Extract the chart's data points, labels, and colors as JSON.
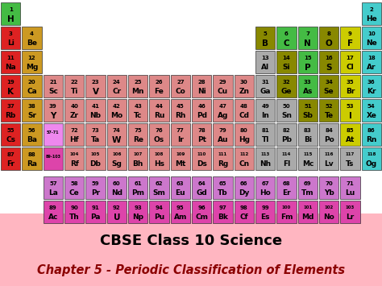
{
  "title1": "CBSE Class 10 Science",
  "title2": "Chapter 5 - Periodic Classification of Elements",
  "bg_color": "#ffb6c1",
  "table_bg": "#ffffff",
  "title1_color": "black",
  "title2_color": "#8b0000",
  "elements": [
    {
      "num": "1",
      "sym": "H",
      "row": 0,
      "col": 0,
      "color": "#44bb44"
    },
    {
      "num": "2",
      "sym": "He",
      "row": 0,
      "col": 17,
      "color": "#44cccc"
    },
    {
      "num": "3",
      "sym": "Li",
      "row": 1,
      "col": 0,
      "color": "#dd2222"
    },
    {
      "num": "4",
      "sym": "Be",
      "row": 1,
      "col": 1,
      "color": "#cc9922"
    },
    {
      "num": "5",
      "sym": "B",
      "row": 1,
      "col": 12,
      "color": "#888800"
    },
    {
      "num": "6",
      "sym": "C",
      "row": 1,
      "col": 13,
      "color": "#44bb44"
    },
    {
      "num": "7",
      "sym": "N",
      "row": 1,
      "col": 14,
      "color": "#44bb44"
    },
    {
      "num": "8",
      "sym": "O",
      "row": 1,
      "col": 15,
      "color": "#888800"
    },
    {
      "num": "9",
      "sym": "F",
      "row": 1,
      "col": 16,
      "color": "#cccc00"
    },
    {
      "num": "10",
      "sym": "Ne",
      "row": 1,
      "col": 17,
      "color": "#44cccc"
    },
    {
      "num": "11",
      "sym": "Na",
      "row": 2,
      "col": 0,
      "color": "#dd2222"
    },
    {
      "num": "12",
      "sym": "Mg",
      "row": 2,
      "col": 1,
      "color": "#cc9922"
    },
    {
      "num": "13",
      "sym": "Al",
      "row": 2,
      "col": 12,
      "color": "#aaaaaa"
    },
    {
      "num": "14",
      "sym": "Si",
      "row": 2,
      "col": 13,
      "color": "#888800"
    },
    {
      "num": "15",
      "sym": "P",
      "row": 2,
      "col": 14,
      "color": "#44bb44"
    },
    {
      "num": "16",
      "sym": "S",
      "row": 2,
      "col": 15,
      "color": "#888800"
    },
    {
      "num": "17",
      "sym": "Cl",
      "row": 2,
      "col": 16,
      "color": "#cccc00"
    },
    {
      "num": "18",
      "sym": "Ar",
      "row": 2,
      "col": 17,
      "color": "#44cccc"
    },
    {
      "num": "19",
      "sym": "K",
      "row": 3,
      "col": 0,
      "color": "#dd2222"
    },
    {
      "num": "20",
      "sym": "Ca",
      "row": 3,
      "col": 1,
      "color": "#cc9922"
    },
    {
      "num": "21",
      "sym": "Sc",
      "row": 3,
      "col": 2,
      "color": "#dd8888"
    },
    {
      "num": "22",
      "sym": "Ti",
      "row": 3,
      "col": 3,
      "color": "#dd8888"
    },
    {
      "num": "23",
      "sym": "V",
      "row": 3,
      "col": 4,
      "color": "#dd8888"
    },
    {
      "num": "24",
      "sym": "Cr",
      "row": 3,
      "col": 5,
      "color": "#dd8888"
    },
    {
      "num": "25",
      "sym": "Mn",
      "row": 3,
      "col": 6,
      "color": "#dd8888"
    },
    {
      "num": "26",
      "sym": "Fe",
      "row": 3,
      "col": 7,
      "color": "#dd8888"
    },
    {
      "num": "27",
      "sym": "Co",
      "row": 3,
      "col": 8,
      "color": "#dd8888"
    },
    {
      "num": "28",
      "sym": "Ni",
      "row": 3,
      "col": 9,
      "color": "#dd8888"
    },
    {
      "num": "29",
      "sym": "Cu",
      "row": 3,
      "col": 10,
      "color": "#dd8888"
    },
    {
      "num": "30",
      "sym": "Zn",
      "row": 3,
      "col": 11,
      "color": "#dd8888"
    },
    {
      "num": "31",
      "sym": "Ga",
      "row": 3,
      "col": 12,
      "color": "#aaaaaa"
    },
    {
      "num": "32",
      "sym": "Ge",
      "row": 3,
      "col": 13,
      "color": "#888800"
    },
    {
      "num": "33",
      "sym": "As",
      "row": 3,
      "col": 14,
      "color": "#44bb44"
    },
    {
      "num": "34",
      "sym": "Se",
      "row": 3,
      "col": 15,
      "color": "#888800"
    },
    {
      "num": "35",
      "sym": "Br",
      "row": 3,
      "col": 16,
      "color": "#cccc00"
    },
    {
      "num": "36",
      "sym": "Kr",
      "row": 3,
      "col": 17,
      "color": "#44cccc"
    },
    {
      "num": "37",
      "sym": "Rb",
      "row": 4,
      "col": 0,
      "color": "#dd2222"
    },
    {
      "num": "38",
      "sym": "Sr",
      "row": 4,
      "col": 1,
      "color": "#cc9922"
    },
    {
      "num": "39",
      "sym": "Y",
      "row": 4,
      "col": 2,
      "color": "#dd8888"
    },
    {
      "num": "40",
      "sym": "Zr",
      "row": 4,
      "col": 3,
      "color": "#dd8888"
    },
    {
      "num": "41",
      "sym": "Nb",
      "row": 4,
      "col": 4,
      "color": "#dd8888"
    },
    {
      "num": "42",
      "sym": "Mo",
      "row": 4,
      "col": 5,
      "color": "#dd8888"
    },
    {
      "num": "43",
      "sym": "Tc",
      "row": 4,
      "col": 6,
      "color": "#dd8888"
    },
    {
      "num": "44",
      "sym": "Ru",
      "row": 4,
      "col": 7,
      "color": "#dd8888"
    },
    {
      "num": "45",
      "sym": "Rh",
      "row": 4,
      "col": 8,
      "color": "#dd8888"
    },
    {
      "num": "46",
      "sym": "Pd",
      "row": 4,
      "col": 9,
      "color": "#dd8888"
    },
    {
      "num": "47",
      "sym": "Ag",
      "row": 4,
      "col": 10,
      "color": "#dd8888"
    },
    {
      "num": "48",
      "sym": "Cd",
      "row": 4,
      "col": 11,
      "color": "#dd8888"
    },
    {
      "num": "49",
      "sym": "In",
      "row": 4,
      "col": 12,
      "color": "#aaaaaa"
    },
    {
      "num": "50",
      "sym": "Sn",
      "row": 4,
      "col": 13,
      "color": "#aaaaaa"
    },
    {
      "num": "51",
      "sym": "Sb",
      "row": 4,
      "col": 14,
      "color": "#888800"
    },
    {
      "num": "52",
      "sym": "Te",
      "row": 4,
      "col": 15,
      "color": "#888800"
    },
    {
      "num": "53",
      "sym": "I",
      "row": 4,
      "col": 16,
      "color": "#cccc00"
    },
    {
      "num": "54",
      "sym": "Xe",
      "row": 4,
      "col": 17,
      "color": "#44cccc"
    },
    {
      "num": "55",
      "sym": "Cs",
      "row": 5,
      "col": 0,
      "color": "#dd2222"
    },
    {
      "num": "56",
      "sym": "Ba",
      "row": 5,
      "col": 1,
      "color": "#cc9922"
    },
    {
      "num": "57-71",
      "sym": "",
      "row": 5,
      "col": 2,
      "color": "#ee88ee"
    },
    {
      "num": "72",
      "sym": "Hf",
      "row": 5,
      "col": 3,
      "color": "#dd8888"
    },
    {
      "num": "73",
      "sym": "Ta",
      "row": 5,
      "col": 4,
      "color": "#dd8888"
    },
    {
      "num": "74",
      "sym": "W",
      "row": 5,
      "col": 5,
      "color": "#dd8888"
    },
    {
      "num": "75",
      "sym": "Re",
      "row": 5,
      "col": 6,
      "color": "#dd8888"
    },
    {
      "num": "76",
      "sym": "Os",
      "row": 5,
      "col": 7,
      "color": "#dd8888"
    },
    {
      "num": "77",
      "sym": "Ir",
      "row": 5,
      "col": 8,
      "color": "#dd8888"
    },
    {
      "num": "78",
      "sym": "Pt",
      "row": 5,
      "col": 9,
      "color": "#dd8888"
    },
    {
      "num": "79",
      "sym": "Au",
      "row": 5,
      "col": 10,
      "color": "#dd8888"
    },
    {
      "num": "80",
      "sym": "Hg",
      "row": 5,
      "col": 11,
      "color": "#dd8888"
    },
    {
      "num": "81",
      "sym": "Tl",
      "row": 5,
      "col": 12,
      "color": "#aaaaaa"
    },
    {
      "num": "82",
      "sym": "Pb",
      "row": 5,
      "col": 13,
      "color": "#aaaaaa"
    },
    {
      "num": "83",
      "sym": "Bi",
      "row": 5,
      "col": 14,
      "color": "#aaaaaa"
    },
    {
      "num": "84",
      "sym": "Po",
      "row": 5,
      "col": 15,
      "color": "#aaaaaa"
    },
    {
      "num": "85",
      "sym": "At",
      "row": 5,
      "col": 16,
      "color": "#cccc00"
    },
    {
      "num": "86",
      "sym": "Rn",
      "row": 5,
      "col": 17,
      "color": "#44cccc"
    },
    {
      "num": "87",
      "sym": "Fr",
      "row": 6,
      "col": 0,
      "color": "#dd2222"
    },
    {
      "num": "88",
      "sym": "Ra",
      "row": 6,
      "col": 1,
      "color": "#cc9922"
    },
    {
      "num": "89-103",
      "sym": "",
      "row": 6,
      "col": 2,
      "color": "#dd44aa"
    },
    {
      "num": "104",
      "sym": "Rf",
      "row": 6,
      "col": 3,
      "color": "#dd8888"
    },
    {
      "num": "105",
      "sym": "Db",
      "row": 6,
      "col": 4,
      "color": "#dd8888"
    },
    {
      "num": "106",
      "sym": "Sg",
      "row": 6,
      "col": 5,
      "color": "#dd8888"
    },
    {
      "num": "107",
      "sym": "Bh",
      "row": 6,
      "col": 6,
      "color": "#dd8888"
    },
    {
      "num": "108",
      "sym": "Hs",
      "row": 6,
      "col": 7,
      "color": "#dd8888"
    },
    {
      "num": "109",
      "sym": "Mt",
      "row": 6,
      "col": 8,
      "color": "#dd8888"
    },
    {
      "num": "110",
      "sym": "Ds",
      "row": 6,
      "col": 9,
      "color": "#dd8888"
    },
    {
      "num": "111",
      "sym": "Rg",
      "row": 6,
      "col": 10,
      "color": "#dd8888"
    },
    {
      "num": "112",
      "sym": "Cn",
      "row": 6,
      "col": 11,
      "color": "#dd8888"
    },
    {
      "num": "113",
      "sym": "Nh",
      "row": 6,
      "col": 12,
      "color": "#aaaaaa"
    },
    {
      "num": "114",
      "sym": "Fl",
      "row": 6,
      "col": 13,
      "color": "#aaaaaa"
    },
    {
      "num": "115",
      "sym": "Mc",
      "row": 6,
      "col": 14,
      "color": "#aaaaaa"
    },
    {
      "num": "116",
      "sym": "Lv",
      "row": 6,
      "col": 15,
      "color": "#aaaaaa"
    },
    {
      "num": "117",
      "sym": "Ts",
      "row": 6,
      "col": 16,
      "color": "#aaaaaa"
    },
    {
      "num": "118",
      "sym": "Og",
      "row": 6,
      "col": 17,
      "color": "#44cccc"
    },
    {
      "num": "57",
      "sym": "La",
      "row": 8,
      "col": 2,
      "color": "#cc77cc"
    },
    {
      "num": "58",
      "sym": "Ce",
      "row": 8,
      "col": 3,
      "color": "#cc77cc"
    },
    {
      "num": "59",
      "sym": "Pr",
      "row": 8,
      "col": 4,
      "color": "#cc77cc"
    },
    {
      "num": "60",
      "sym": "Nd",
      "row": 8,
      "col": 5,
      "color": "#cc77cc"
    },
    {
      "num": "61",
      "sym": "Pm",
      "row": 8,
      "col": 6,
      "color": "#cc77cc"
    },
    {
      "num": "62",
      "sym": "Sm",
      "row": 8,
      "col": 7,
      "color": "#cc77cc"
    },
    {
      "num": "63",
      "sym": "Eu",
      "row": 8,
      "col": 8,
      "color": "#cc77cc"
    },
    {
      "num": "64",
      "sym": "Gd",
      "row": 8,
      "col": 9,
      "color": "#cc77cc"
    },
    {
      "num": "65",
      "sym": "Tb",
      "row": 8,
      "col": 10,
      "color": "#cc77cc"
    },
    {
      "num": "66",
      "sym": "Dy",
      "row": 8,
      "col": 11,
      "color": "#cc77cc"
    },
    {
      "num": "67",
      "sym": "Ho",
      "row": 8,
      "col": 12,
      "color": "#cc77cc"
    },
    {
      "num": "68",
      "sym": "Er",
      "row": 8,
      "col": 13,
      "color": "#cc77cc"
    },
    {
      "num": "69",
      "sym": "Tm",
      "row": 8,
      "col": 14,
      "color": "#cc77cc"
    },
    {
      "num": "70",
      "sym": "Yb",
      "row": 8,
      "col": 15,
      "color": "#cc77cc"
    },
    {
      "num": "71",
      "sym": "Lu",
      "row": 8,
      "col": 16,
      "color": "#cc77cc"
    },
    {
      "num": "89",
      "sym": "Ac",
      "row": 9,
      "col": 2,
      "color": "#dd44aa"
    },
    {
      "num": "90",
      "sym": "Th",
      "row": 9,
      "col": 3,
      "color": "#dd44aa"
    },
    {
      "num": "91",
      "sym": "Pa",
      "row": 9,
      "col": 4,
      "color": "#dd44aa"
    },
    {
      "num": "92",
      "sym": "U",
      "row": 9,
      "col": 5,
      "color": "#dd44aa"
    },
    {
      "num": "93",
      "sym": "Np",
      "row": 9,
      "col": 6,
      "color": "#dd44aa"
    },
    {
      "num": "94",
      "sym": "Pu",
      "row": 9,
      "col": 7,
      "color": "#dd44aa"
    },
    {
      "num": "95",
      "sym": "Am",
      "row": 9,
      "col": 8,
      "color": "#dd44aa"
    },
    {
      "num": "96",
      "sym": "Cm",
      "row": 9,
      "col": 9,
      "color": "#dd44aa"
    },
    {
      "num": "97",
      "sym": "Bk",
      "row": 9,
      "col": 10,
      "color": "#dd44aa"
    },
    {
      "num": "98",
      "sym": "Cf",
      "row": 9,
      "col": 11,
      "color": "#dd44aa"
    },
    {
      "num": "99",
      "sym": "Es",
      "row": 9,
      "col": 12,
      "color": "#dd44aa"
    },
    {
      "num": "100",
      "sym": "Fm",
      "row": 9,
      "col": 13,
      "color": "#dd44aa"
    },
    {
      "num": "101",
      "sym": "Md",
      "row": 9,
      "col": 14,
      "color": "#dd44aa"
    },
    {
      "num": "102",
      "sym": "No",
      "row": 9,
      "col": 15,
      "color": "#dd44aa"
    },
    {
      "num": "103",
      "sym": "Lr",
      "row": 9,
      "col": 16,
      "color": "#dd44aa"
    }
  ]
}
